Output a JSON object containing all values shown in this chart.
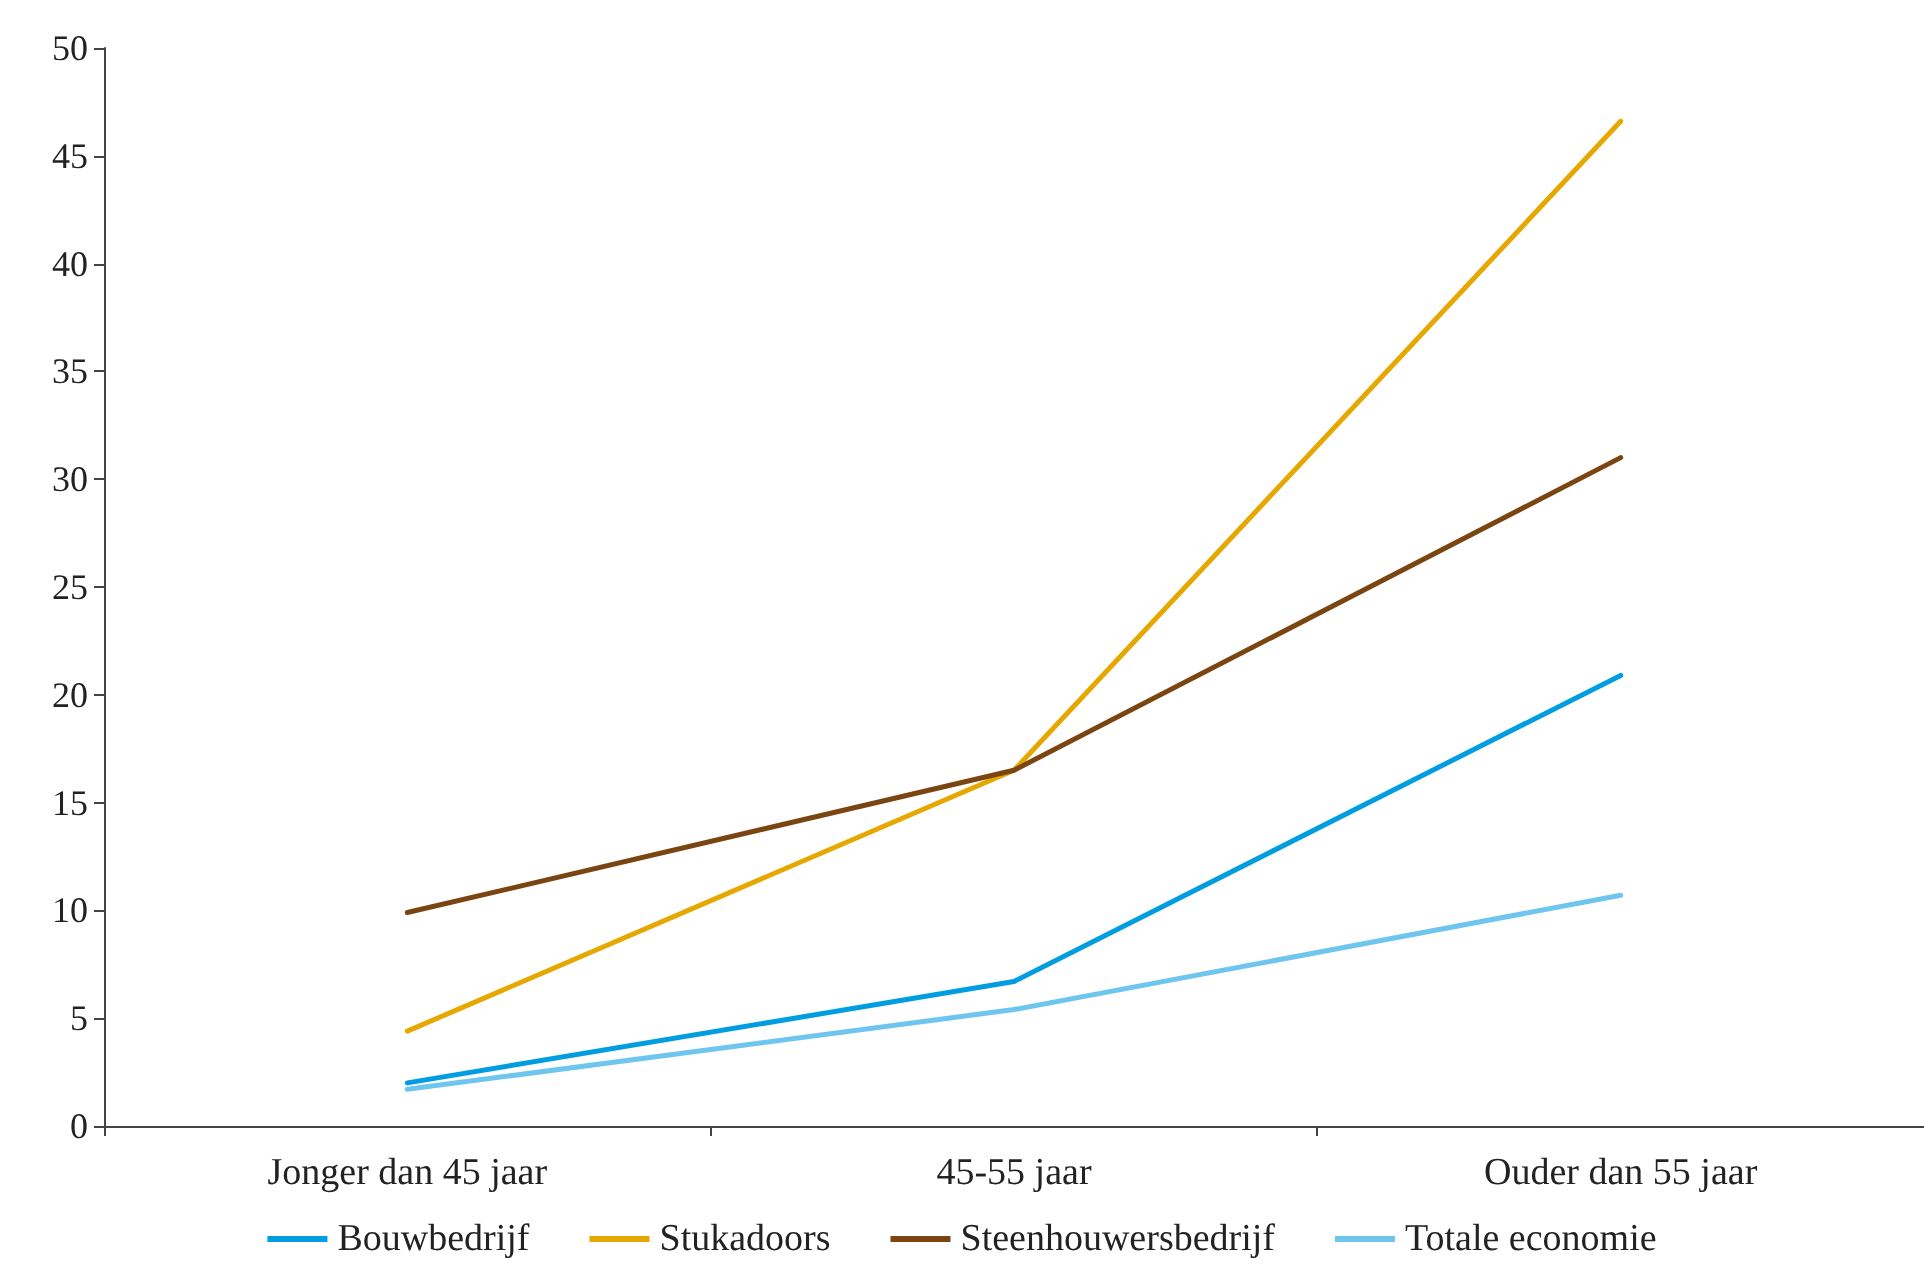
{
  "chart_data": {
    "type": "line",
    "categories": [
      "Jonger dan 45 jaar",
      "45-55 jaar",
      "Ouder dan 55 jaar"
    ],
    "series": [
      {
        "name": "Bouwbedrijf",
        "color": "#009ee0",
        "values": [
          2.0,
          6.7,
          20.9
        ]
      },
      {
        "name": "Stukadoors",
        "color": "#e6a800",
        "values": [
          4.4,
          16.5,
          46.6
        ]
      },
      {
        "name": "Steenhouwersbedrijf",
        "color": "#7a4510",
        "values": [
          9.9,
          16.5,
          31.0
        ]
      },
      {
        "name": "Totale economie",
        "color": "#6ec6ee",
        "values": [
          1.7,
          5.4,
          10.7
        ]
      }
    ],
    "ylim": [
      0,
      50
    ],
    "yticks": [
      0,
      5,
      10,
      15,
      20,
      25,
      30,
      35,
      40,
      45,
      50
    ],
    "grid": false,
    "legend": "bottom",
    "marker": "none",
    "line_style": "solid"
  }
}
